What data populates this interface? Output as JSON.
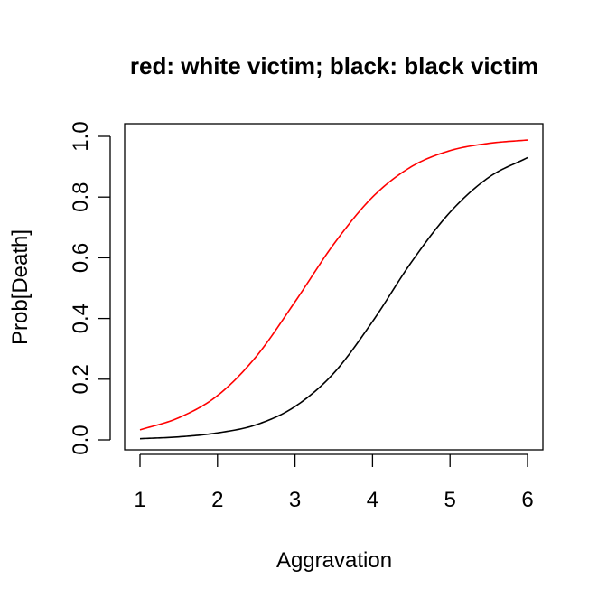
{
  "chart_data": {
    "type": "line",
    "title": "red: white victim; black: black victim",
    "xlabel": "Aggravation",
    "ylabel": "Prob[Death]",
    "xlim": [
      1,
      6
    ],
    "ylim": [
      0,
      1
    ],
    "xticks": [
      "1",
      "2",
      "3",
      "4",
      "5",
      "6"
    ],
    "yticks": [
      "0.0",
      "0.2",
      "0.4",
      "0.6",
      "0.8",
      "1.0"
    ],
    "grid": false,
    "x": [
      1,
      1.5,
      2,
      2.5,
      3,
      3.5,
      4,
      4.5,
      5,
      5.5,
      6
    ],
    "series": [
      {
        "color": "#ff0000",
        "values": [
          0.033,
          0.073,
          0.146,
          0.275,
          0.455,
          0.645,
          0.8,
          0.9,
          0.953,
          0.977,
          0.988
        ]
      },
      {
        "color": "#000000",
        "values": [
          0.004,
          0.01,
          0.023,
          0.05,
          0.11,
          0.22,
          0.39,
          0.585,
          0.75,
          0.865,
          0.93
        ]
      }
    ]
  }
}
